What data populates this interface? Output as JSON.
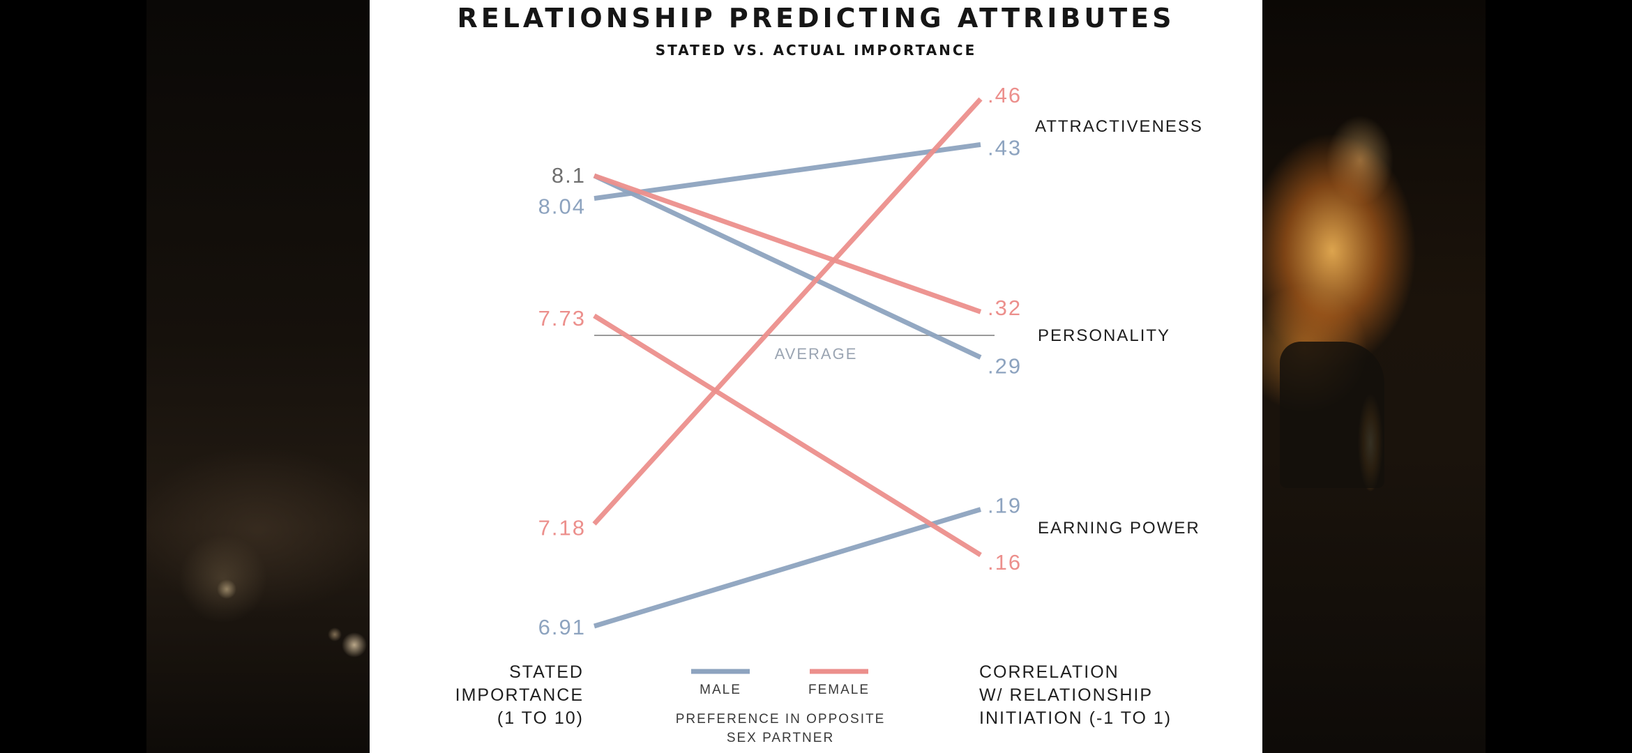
{
  "chart_data": {
    "type": "line",
    "title": "RELATIONSHIP PREDICTING ATTRIBUTES",
    "subtitle": "STATED VS. ACTUAL IMPORTANCE",
    "x": [
      "STATED IMPORTANCE",
      "CORRELATION"
    ],
    "left_axis_label": [
      "STATED",
      "IMPORTANCE",
      "(1 TO 10)"
    ],
    "right_axis_label": [
      "CORRELATION",
      "W/ RELATIONSHIP",
      "INITIATION (-1 TO 1)"
    ],
    "left_scale": [
      6.91,
      8.1
    ],
    "right_scale": [
      0.16,
      0.46
    ],
    "average_label": "AVERAGE",
    "categories": [
      "ATTRACTIVENESS",
      "PERSONALITY",
      "EARNING POWER"
    ],
    "series": [
      {
        "name": "MALE",
        "color": "#8da3bf",
        "lines": [
          {
            "attribute": "ATTRACTIVENESS",
            "stated": 8.04,
            "stated_label": "8.04",
            "correlation": 0.43,
            "correlation_label": ".43"
          },
          {
            "attribute": "PERSONALITY",
            "stated": 8.1,
            "stated_label": "",
            "correlation": 0.29,
            "correlation_label": ".29"
          },
          {
            "attribute": "EARNING POWER",
            "stated": 6.91,
            "stated_label": "6.91",
            "correlation": 0.19,
            "correlation_label": ".19"
          }
        ]
      },
      {
        "name": "FEMALE",
        "color": "#ec8f8c",
        "lines": [
          {
            "attribute": "ATTRACTIVENESS",
            "stated": 7.18,
            "stated_label": "7.18",
            "correlation": 0.46,
            "correlation_label": ".46"
          },
          {
            "attribute": "PERSONALITY",
            "stated": 8.1,
            "stated_label": "",
            "correlation": 0.32,
            "correlation_label": ".32"
          },
          {
            "attribute": "EARNING POWER",
            "stated": 7.73,
            "stated_label": "7.73",
            "correlation": 0.16,
            "correlation_label": ".16"
          }
        ]
      }
    ],
    "shared_stated_label": {
      "text": "8.1",
      "value": 8.1,
      "color": "#6f6f6f"
    },
    "legend": {
      "placement": "bottom-center",
      "entries": [
        "MALE",
        "FEMALE"
      ],
      "caption": [
        "PREFERENCE IN OPPOSITE",
        "SEX PARTNER"
      ]
    }
  }
}
